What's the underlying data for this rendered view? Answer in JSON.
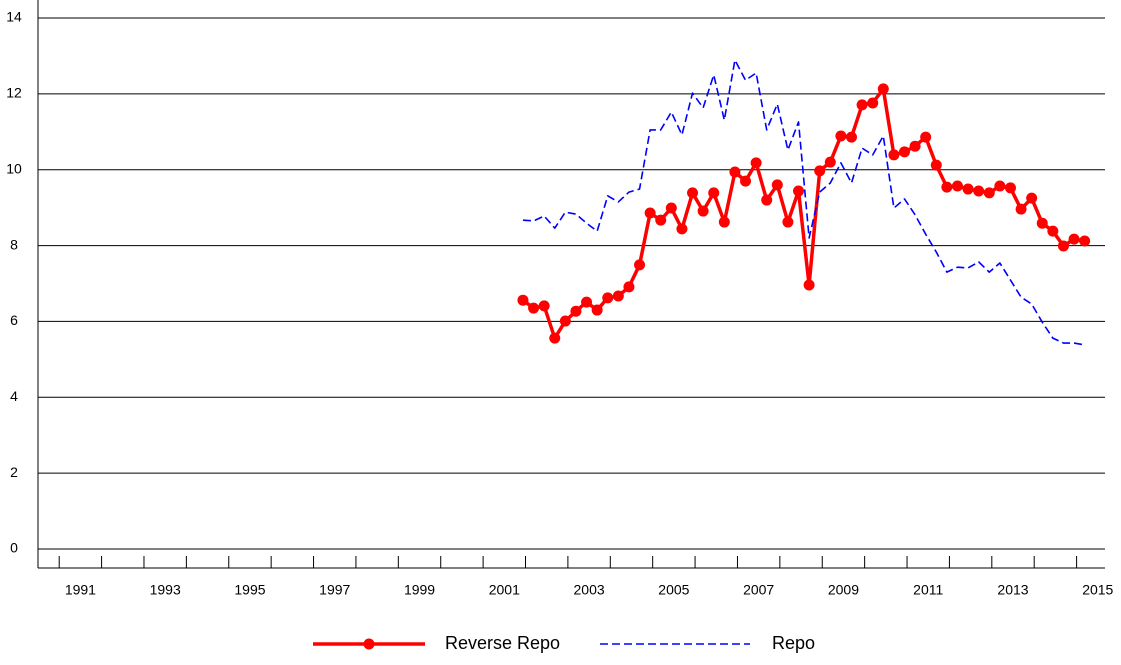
{
  "chart_data": {
    "type": "line",
    "x": [
      2001.94,
      2002.19,
      2002.44,
      2002.69,
      2002.94,
      2003.19,
      2003.44,
      2003.69,
      2003.94,
      2004.19,
      2004.44,
      2004.69,
      2004.94,
      2005.19,
      2005.44,
      2005.69,
      2005.94,
      2006.19,
      2006.44,
      2006.69,
      2006.94,
      2007.19,
      2007.44,
      2007.69,
      2007.94,
      2008.19,
      2008.44,
      2008.69,
      2008.94,
      2009.19,
      2009.44,
      2009.69,
      2009.94,
      2010.19,
      2010.44,
      2010.69,
      2010.94,
      2011.19,
      2011.44,
      2011.69,
      2011.94,
      2012.19,
      2012.44,
      2012.69,
      2012.94,
      2013.19,
      2013.44,
      2013.69,
      2013.94,
      2014.19,
      2014.44,
      2014.69,
      2014.94,
      2015.19
    ],
    "series": [
      {
        "name": "Reverse Repo",
        "color": "#ff0000",
        "style": "solid-markers",
        "values": [
          6.56,
          6.35,
          6.41,
          5.56,
          6.01,
          6.27,
          6.51,
          6.3,
          6.62,
          6.67,
          6.91,
          7.49,
          8.86,
          8.67,
          8.99,
          8.44,
          9.39,
          8.91,
          9.39,
          8.62,
          9.94,
          9.7,
          10.18,
          9.2,
          9.6,
          8.62,
          9.44,
          6.96,
          9.97,
          10.2,
          10.89,
          10.86,
          11.71,
          11.76,
          12.13,
          10.39,
          10.47,
          10.62,
          10.86,
          10.12,
          9.54,
          9.57,
          9.49,
          9.44,
          9.39,
          9.57,
          9.52,
          8.96,
          9.25,
          8.59,
          8.38,
          7.99,
          8.17,
          8.12
        ]
      },
      {
        "name": "Repo",
        "color": "#0000ff",
        "style": "dashed",
        "values": [
          8.67,
          8.65,
          8.78,
          8.46,
          8.88,
          8.83,
          8.59,
          8.38,
          9.31,
          9.15,
          9.41,
          9.49,
          11.05,
          11.05,
          11.52,
          10.92,
          12.02,
          11.63,
          12.5,
          11.31,
          12.89,
          12.36,
          12.55,
          11.05,
          11.73,
          10.52,
          11.26,
          8.2,
          9.41,
          9.65,
          10.18,
          9.65,
          10.57,
          10.39,
          10.89,
          8.99,
          9.23,
          8.81,
          8.3,
          7.83,
          7.3,
          7.43,
          7.41,
          7.57,
          7.3,
          7.54,
          7.09,
          6.64,
          6.46,
          5.98,
          5.56,
          5.43,
          5.43,
          5.38
        ]
      }
    ],
    "xlim": [
      1990.5,
      2015.67
    ],
    "ylim": [
      0,
      14
    ],
    "yticks": [
      0,
      2,
      4,
      6,
      8,
      10,
      12,
      14
    ],
    "xticks": [
      {
        "value": 1991.5,
        "label": "1991"
      },
      {
        "value": 1993.5,
        "label": "1993"
      },
      {
        "value": 1995.5,
        "label": "1995"
      },
      {
        "value": 1997.5,
        "label": "1997"
      },
      {
        "value": 1999.5,
        "label": "1999"
      },
      {
        "value": 2001.5,
        "label": "2001"
      },
      {
        "value": 2003.5,
        "label": "2003"
      },
      {
        "value": 2005.5,
        "label": "2005"
      },
      {
        "value": 2007.5,
        "label": "2007"
      },
      {
        "value": 2009.5,
        "label": "2009"
      },
      {
        "value": 2011.5,
        "label": "2011"
      },
      {
        "value": 2013.5,
        "label": "2013"
      },
      {
        "value": 2015.5,
        "label": "2015"
      }
    ],
    "xminorticks": [
      1991,
      1992,
      1993,
      1994,
      1995,
      1996,
      1997,
      1998,
      1999,
      2000,
      2001,
      2002,
      2003,
      2004,
      2005,
      2006,
      2007,
      2008,
      2009,
      2010,
      2011,
      2012,
      2013,
      2014,
      2015
    ],
    "grid": true,
    "legend": "bottom"
  }
}
